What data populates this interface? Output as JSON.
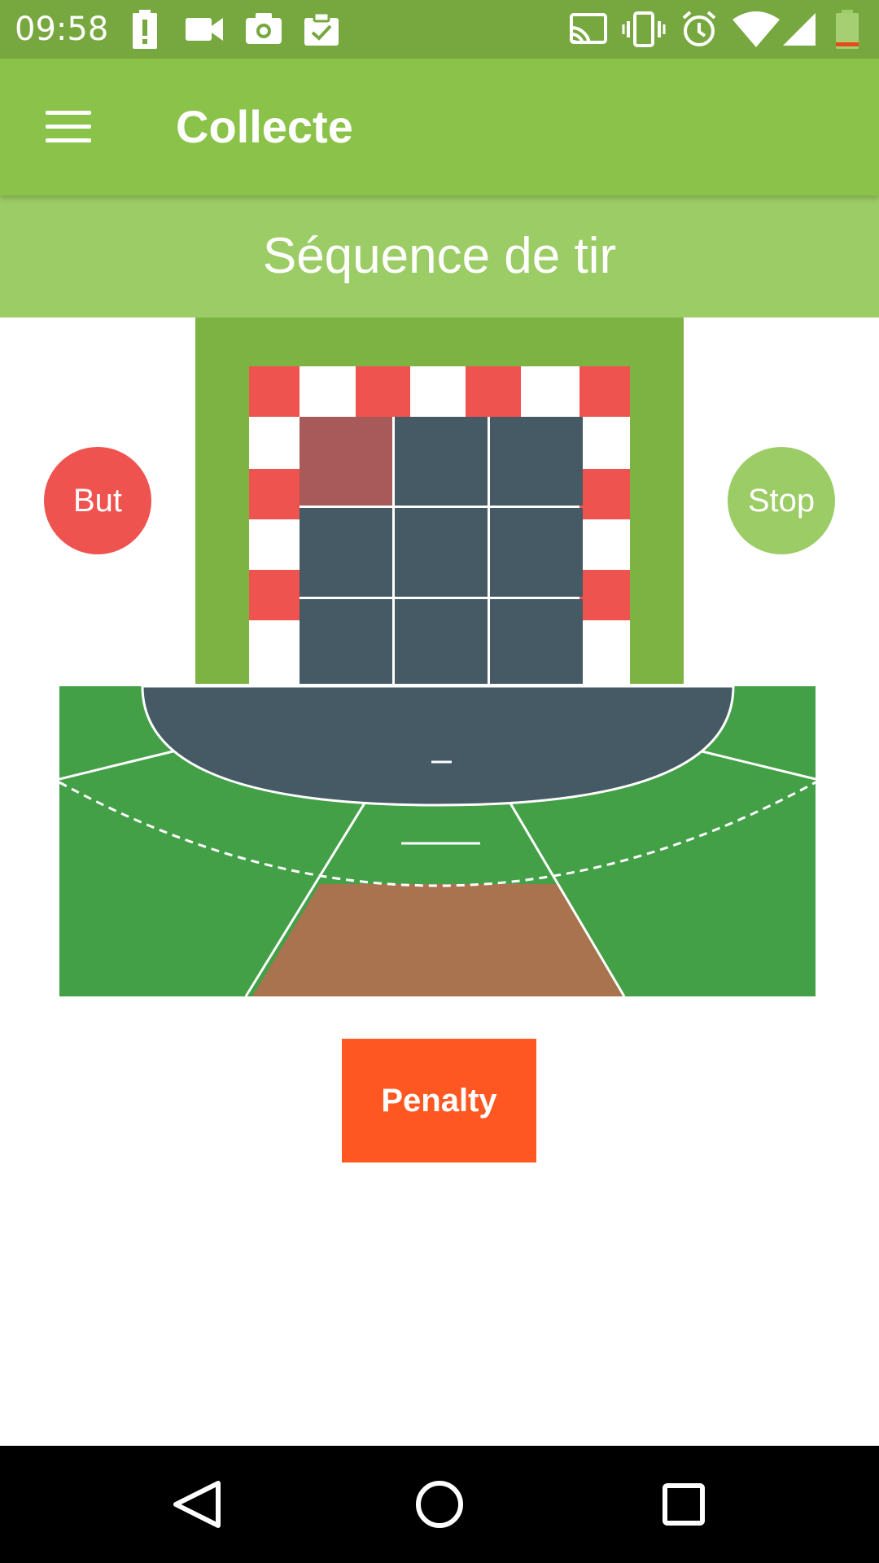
{
  "status_bar": {
    "time": "09:58",
    "left_icons": [
      "battery-alert-icon",
      "video-camera-icon",
      "camera-icon",
      "clipboard-check-icon"
    ],
    "right_icons": [
      "cast-icon",
      "vibrate-icon",
      "alarm-icon",
      "wifi-icon",
      "signal-icon",
      "battery-low-icon"
    ]
  },
  "app_bar": {
    "title": "Collecte",
    "menu_icon": "hamburger-menu-icon"
  },
  "section": {
    "title": "Séquence de tir"
  },
  "buttons": {
    "but": "But",
    "stop": "Stop",
    "penalty": "Penalty"
  },
  "goal": {
    "grid_rows": 3,
    "grid_cols": 3,
    "selected_cell": "top-left"
  },
  "court": {
    "selected_zone": "center-back"
  },
  "colors": {
    "status_bar": "#77a83f",
    "app_bar": "#8bc34a",
    "section_header": "#9ccc65",
    "goal_frame": "#7cb342",
    "goal_cell": "#455a64",
    "goal_cell_selected": "#a85a5a",
    "post_red": "#ef5350",
    "court_green": "#43a047",
    "zone_selected": "#a8734e",
    "penalty": "#ff5722"
  },
  "nav_bar": {
    "buttons": [
      "back-icon",
      "home-icon",
      "recents-icon"
    ]
  }
}
